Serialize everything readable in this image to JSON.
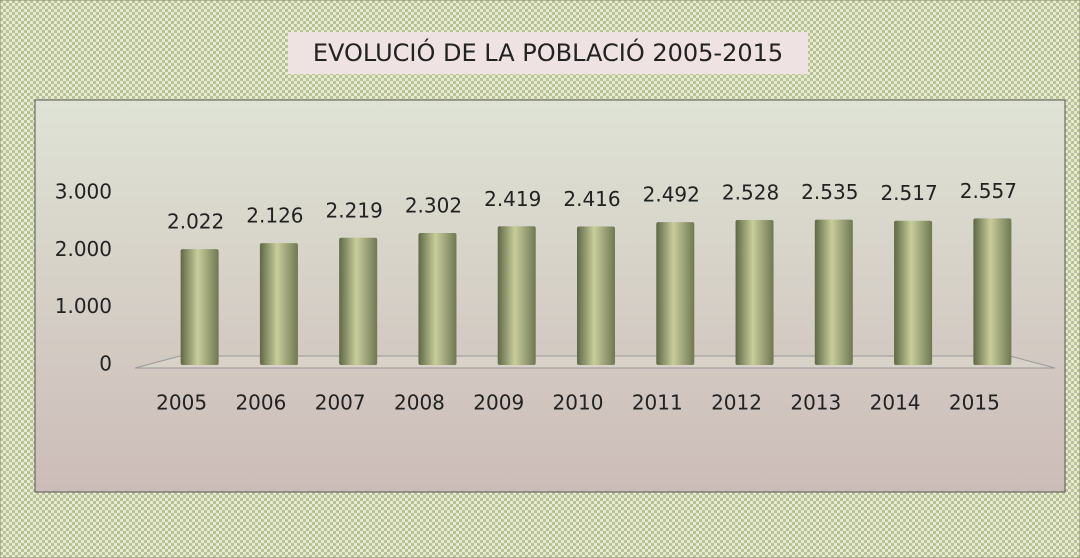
{
  "chart_data": {
    "type": "bar",
    "title": "EVOLUCIÓ DE LA POBLACIÓ 2005-2015",
    "categories": [
      "2005",
      "2006",
      "2007",
      "2008",
      "2009",
      "2010",
      "2011",
      "2012",
      "2013",
      "2014",
      "2015"
    ],
    "values": [
      2022,
      2126,
      2219,
      2302,
      2419,
      2416,
      2492,
      2528,
      2535,
      2517,
      2557
    ],
    "value_labels": [
      "2.022",
      "2.126",
      "2.219",
      "2.302",
      "2.419",
      "2.416",
      "2.492",
      "2.528",
      "2.535",
      "2.517",
      "2.557"
    ],
    "color": "#9aa074",
    "ylim": [
      0,
      3000
    ],
    "yticks": [
      0,
      {
        "value": 1000,
        "label": "1.000"
      },
      {
        "value": 2000,
        "label": "2.000"
      },
      {
        "value": 3000,
        "label": "3.000"
      }
    ],
    "grid": false
  }
}
